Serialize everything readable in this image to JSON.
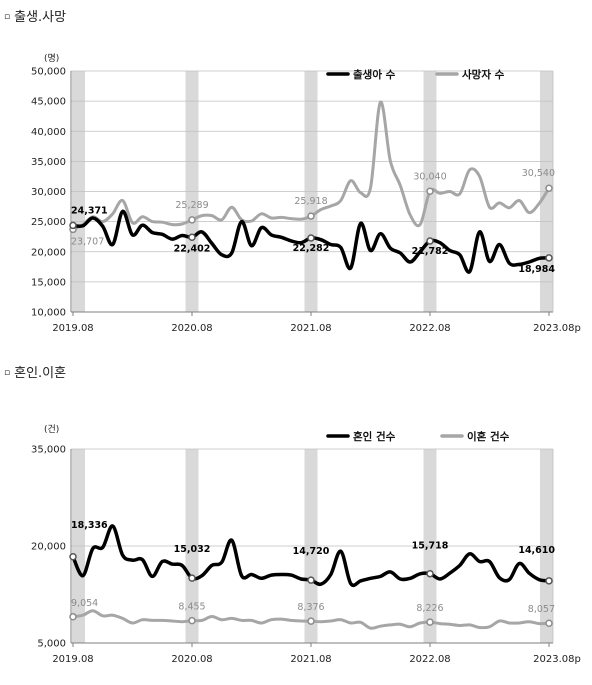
{
  "sections": [
    {
      "bullet": "▫",
      "title": "출생.사망"
    },
    {
      "bullet": "▫",
      "title": "혼인.이혼"
    }
  ],
  "chart_data": [
    {
      "type": "line",
      "unit": "(명)",
      "ylim": [
        10000,
        50000
      ],
      "yticks": [
        "10,000",
        "15,000",
        "20,000",
        "25,000",
        "30,000",
        "35,000",
        "40,000",
        "45,000",
        "50,000"
      ],
      "xticks": [
        "2019.08",
        "2020.08",
        "2021.08",
        "2022.08",
        "2023.08p"
      ],
      "legend_position": "top",
      "grid": true,
      "series": [
        {
          "name": "출생아 수",
          "color": "#000000",
          "values": [
            24371,
            24300,
            25600,
            24200,
            21200,
            26700,
            22800,
            24400,
            23200,
            22900,
            22100,
            22700,
            22402,
            23300,
            21400,
            19500,
            19800,
            25000,
            21000,
            24000,
            22800,
            22400,
            21800,
            21500,
            22282,
            22000,
            21200,
            20700,
            17300,
            24700,
            20200,
            23000,
            20600,
            19800,
            18300,
            20000,
            21782,
            21500,
            20200,
            19500,
            16700,
            23300,
            18400,
            21200,
            18100,
            17900,
            18300,
            18900,
            18984
          ],
          "labels": [
            [
              0,
              "24,371"
            ],
            [
              12,
              "22,402"
            ],
            [
              24,
              "22,282"
            ],
            [
              36,
              "21,782"
            ],
            [
              48,
              "18,984"
            ]
          ]
        },
        {
          "name": "사망자 수",
          "color": "#a6a6a6",
          "values": [
            23707,
            24500,
            25800,
            25000,
            26300,
            28500,
            24800,
            25800,
            25000,
            24900,
            24500,
            24600,
            25289,
            26000,
            26000,
            25300,
            27400,
            25300,
            25100,
            26300,
            25600,
            25700,
            25500,
            25400,
            25918,
            27000,
            27600,
            28500,
            31800,
            29800,
            30600,
            44800,
            35100,
            31000,
            26100,
            24500,
            30040,
            29700,
            30000,
            29600,
            33600,
            32500,
            27400,
            28100,
            27300,
            28500,
            26500,
            28000,
            30540
          ],
          "labels": [
            [
              0,
              "23,707"
            ],
            [
              12,
              "25,289"
            ],
            [
              24,
              "25,918"
            ],
            [
              36,
              "30,040"
            ],
            [
              48,
              "30,540"
            ]
          ]
        }
      ]
    },
    {
      "type": "line",
      "unit": "(건)",
      "ylim": [
        5000,
        35000
      ],
      "yticks": [
        "5,000",
        "20,000",
        "35,000"
      ],
      "xticks": [
        "2019.08",
        "2020.08",
        "2021.08",
        "2022.08",
        "2023.08p"
      ],
      "legend_position": "top",
      "grid": true,
      "series": [
        {
          "name": "혼인 건수",
          "color": "#000000",
          "values": [
            18336,
            15400,
            19600,
            19800,
            23100,
            18600,
            17800,
            17900,
            15300,
            17600,
            17200,
            17000,
            15032,
            15400,
            17000,
            17500,
            20900,
            15400,
            15600,
            15000,
            15500,
            15600,
            15500,
            14900,
            14720,
            14100,
            15600,
            19200,
            14200,
            14600,
            15000,
            15300,
            16000,
            14900,
            15000,
            15700,
            15718,
            14900,
            15800,
            17000,
            18800,
            17600,
            17600,
            15100,
            14800,
            17300,
            15800,
            14800,
            14610
          ],
          "labels": [
            [
              0,
              "18,336"
            ],
            [
              12,
              "15,032"
            ],
            [
              24,
              "14,720"
            ],
            [
              36,
              "15,718"
            ],
            [
              48,
              "14,610"
            ]
          ]
        },
        {
          "name": "이혼 건수",
          "color": "#a6a6a6",
          "values": [
            9054,
            9300,
            10000,
            9200,
            9300,
            8800,
            8100,
            8600,
            8500,
            8500,
            8400,
            8300,
            8455,
            8500,
            9100,
            8600,
            8800,
            8500,
            8500,
            8100,
            8600,
            8700,
            8500,
            8400,
            8376,
            8300,
            8400,
            8600,
            8100,
            8200,
            7300,
            7600,
            7800,
            7900,
            7500,
            8100,
            8226,
            8000,
            7900,
            7700,
            7800,
            7400,
            7500,
            8400,
            8100,
            8100,
            8300,
            8000,
            8057
          ],
          "labels": [
            [
              0,
              "9,054"
            ],
            [
              12,
              "8,455"
            ],
            [
              24,
              "8,376"
            ],
            [
              36,
              "8,226"
            ],
            [
              48,
              "8,057"
            ]
          ]
        }
      ]
    }
  ]
}
